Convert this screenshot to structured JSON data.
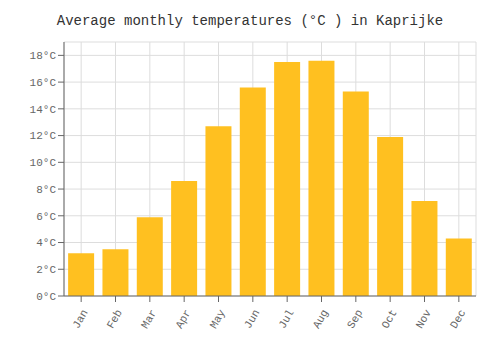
{
  "chart_data": {
    "type": "bar",
    "title": "Average monthly temperatures (°C ) in Kaprijke",
    "categories": [
      "Jan",
      "Feb",
      "Mar",
      "Apr",
      "May",
      "Jun",
      "Jul",
      "Aug",
      "Sep",
      "Oct",
      "Nov",
      "Dec"
    ],
    "values": [
      3.2,
      3.5,
      5.9,
      8.6,
      12.7,
      15.6,
      17.5,
      17.6,
      15.3,
      11.9,
      7.1,
      4.3
    ],
    "color": "#FFC020",
    "ylim": [
      0,
      19
    ],
    "yticks": [
      {
        "value": 0,
        "label": "0°C"
      },
      {
        "value": 2,
        "label": "2°C"
      },
      {
        "value": 4,
        "label": "4°C"
      },
      {
        "value": 6,
        "label": "6°C"
      },
      {
        "value": 8,
        "label": "8°C"
      },
      {
        "value": 10,
        "label": "10°C"
      },
      {
        "value": 12,
        "label": "12°C"
      },
      {
        "value": 14,
        "label": "14°C"
      },
      {
        "value": 16,
        "label": "16°C"
      },
      {
        "value": 18,
        "label": "18°C"
      }
    ],
    "grid": true
  }
}
